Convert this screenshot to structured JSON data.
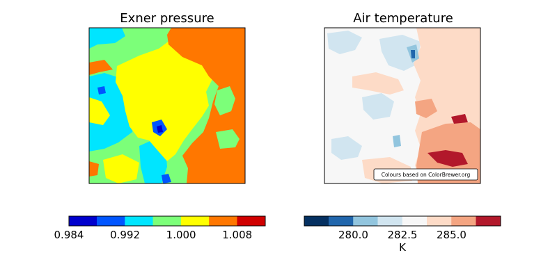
{
  "chart_data": [
    {
      "type": "heatmap",
      "title": "Exner pressure",
      "colorbar": {
        "levels": [
          0.984,
          0.988,
          0.992,
          0.996,
          1.0,
          1.004,
          1.008,
          1.012
        ],
        "colors": [
          "#0000cd",
          "#0055ff",
          "#00e5ff",
          "#7cff79",
          "#ffff00",
          "#ff7700",
          "#d00000"
        ],
        "tick_values": [
          0.984,
          0.992,
          1.0,
          1.008
        ],
        "tick_labels": [
          "0.984",
          "0.992",
          "1.000",
          "1.008"
        ],
        "label": ""
      }
    },
    {
      "type": "heatmap",
      "title": "Air temperature",
      "colorbar": {
        "levels": [
          277.5,
          278.75,
          280.0,
          281.25,
          282.5,
          283.75,
          285.0,
          286.25,
          287.5
        ],
        "colors": [
          "#053061",
          "#2166ac",
          "#92c5de",
          "#d1e5f0",
          "#f7f7f7",
          "#fddbc7",
          "#f4a582",
          "#b2182b",
          "#67001f"
        ],
        "tick_values": [
          280.0,
          282.5,
          285.0
        ],
        "tick_labels": [
          "280.0",
          "282.5",
          "285.0"
        ],
        "label": "K"
      },
      "annotation": "Colours based on ColorBrewer.org"
    }
  ]
}
